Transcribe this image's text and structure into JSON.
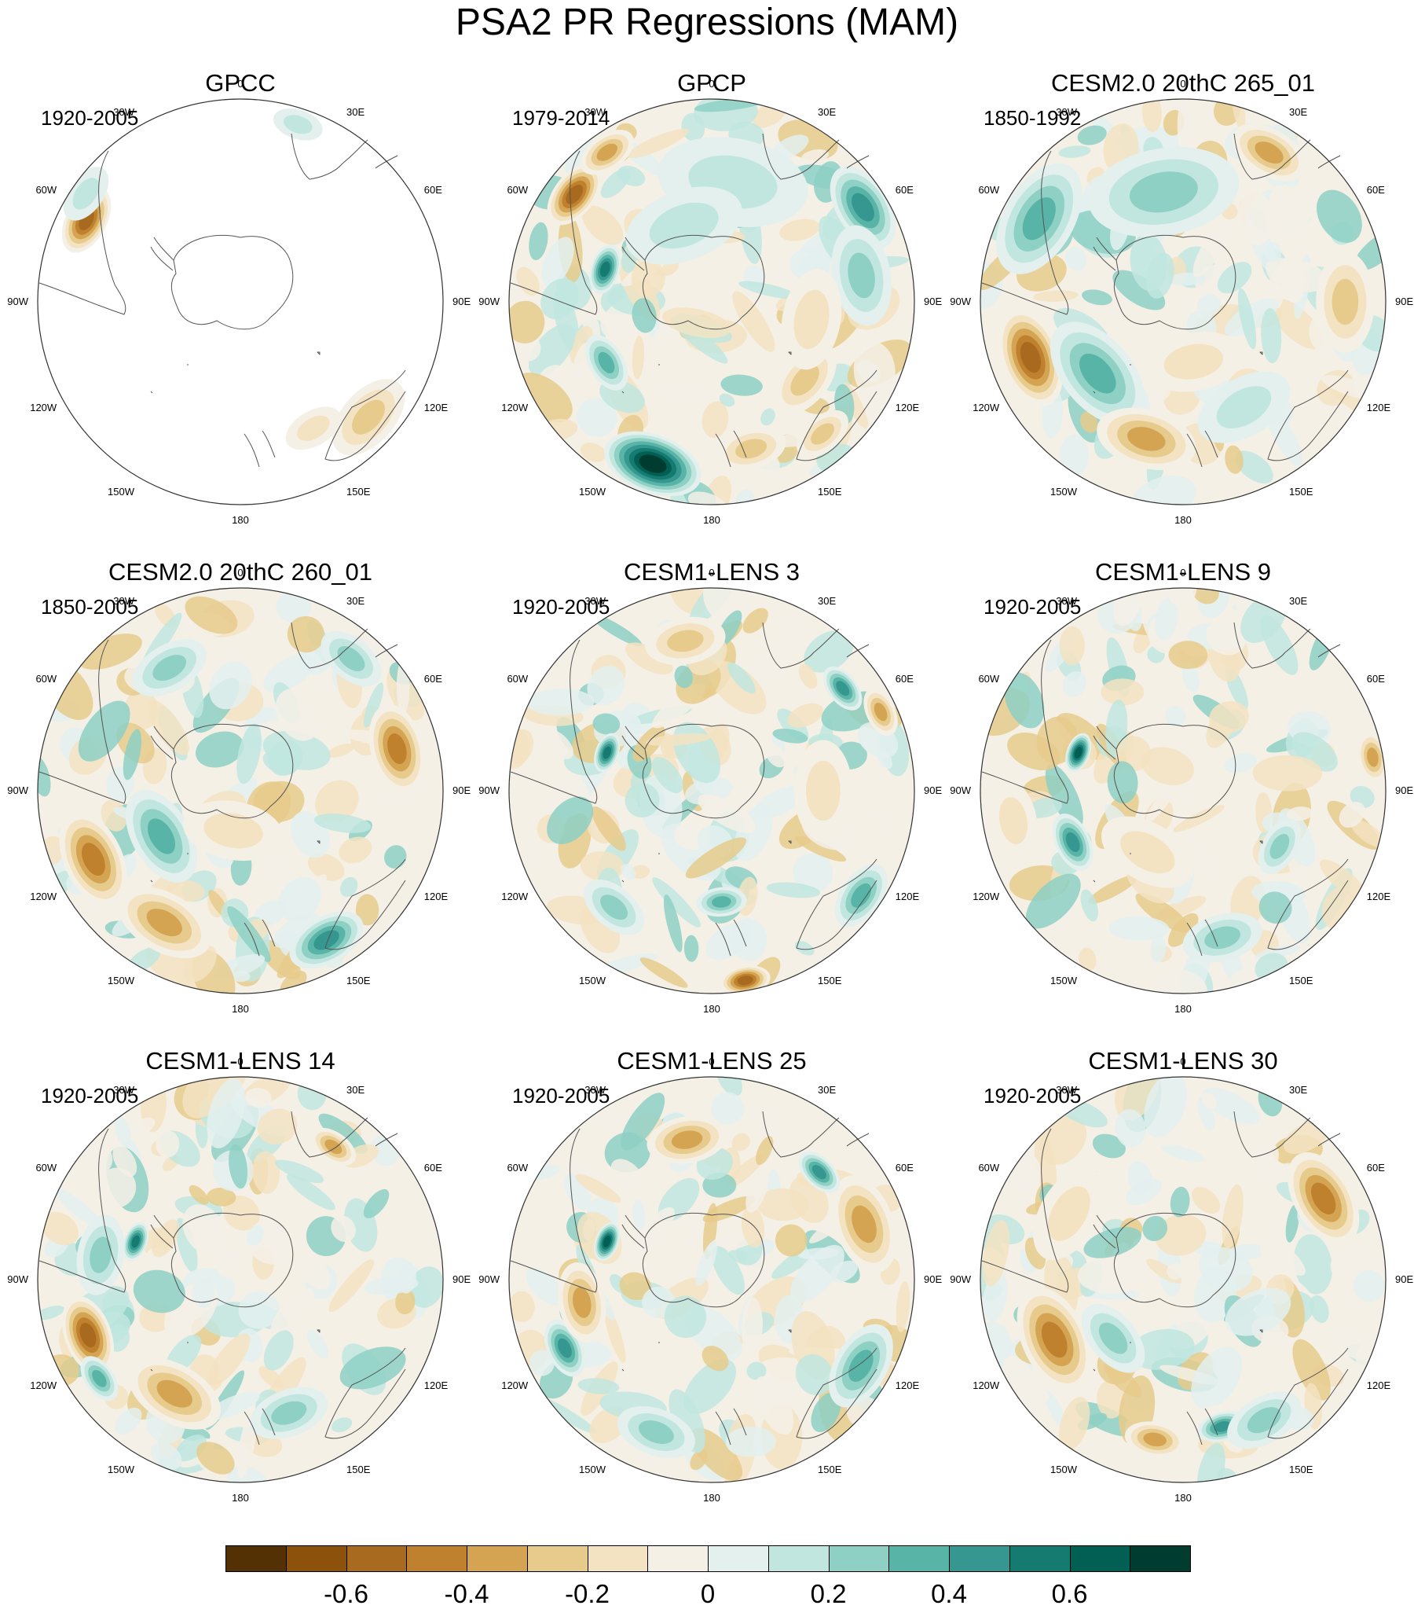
{
  "title": "PSA2 PR Regressions (MAM)",
  "longitude_labels": [
    {
      "lon": 0,
      "text": "0"
    },
    {
      "lon": 30,
      "text": "30E"
    },
    {
      "lon": 60,
      "text": "60E"
    },
    {
      "lon": 90,
      "text": "90E"
    },
    {
      "lon": 120,
      "text": "120E"
    },
    {
      "lon": 150,
      "text": "150E"
    },
    {
      "lon": 180,
      "text": "180"
    },
    {
      "lon": -150,
      "text": "150W"
    },
    {
      "lon": -120,
      "text": "120W"
    },
    {
      "lon": -90,
      "text": "90W"
    },
    {
      "lon": -60,
      "text": "60W"
    },
    {
      "lon": -30,
      "text": "30W"
    }
  ],
  "panels": [
    {
      "title": "GPCC",
      "years": "1920-2005",
      "ocean_data": false,
      "features": [
        {
          "lon": -62,
          "r": 0.86,
          "v": -0.55,
          "s": 0.07
        },
        {
          "lon": -55,
          "r": 0.93,
          "v": 0.15,
          "s": 0.06
        },
        {
          "lon": 18,
          "r": 0.92,
          "v": 0.18,
          "s": 0.05
        },
        {
          "lon": 132,
          "r": 0.85,
          "v": -0.3,
          "s": 0.09
        },
        {
          "lon": 150,
          "r": 0.72,
          "v": -0.2,
          "s": 0.06
        }
      ]
    },
    {
      "title": "GPCP",
      "years": "1979-2014",
      "ocean_data": true,
      "features": [
        {
          "lon": -52,
          "r": 0.86,
          "v": -0.6,
          "s": 0.07
        },
        {
          "lon": -35,
          "r": 0.9,
          "v": -0.4,
          "s": 0.06
        },
        {
          "lon": -73,
          "r": 0.55,
          "v": 0.6,
          "s": 0.05
        },
        {
          "lon": 58,
          "r": 0.88,
          "v": 0.5,
          "s": 0.09
        },
        {
          "lon": 80,
          "r": 0.75,
          "v": 0.25,
          "s": 0.1
        },
        {
          "lon": -160,
          "r": 0.85,
          "v": 0.75,
          "s": 0.1
        },
        {
          "lon": -120,
          "r": 0.6,
          "v": 0.4,
          "s": 0.06
        },
        {
          "lon": 165,
          "r": 0.75,
          "v": -0.3,
          "s": 0.07
        },
        {
          "lon": 130,
          "r": 0.6,
          "v": -0.25,
          "s": 0.08
        },
        {
          "lon": 10,
          "r": 0.6,
          "v": 0.2,
          "s": 0.15
        },
        {
          "lon": 100,
          "r": 0.5,
          "v": -0.15,
          "s": 0.1
        },
        {
          "lon": -20,
          "r": 0.4,
          "v": 0.15,
          "s": 0.12
        },
        {
          "lon": 140,
          "r": 0.85,
          "v": -0.25,
          "s": 0.06
        }
      ]
    },
    {
      "title": "CESM2.0 20thC 265_01",
      "years": "1850-1992",
      "ocean_data": true,
      "features": [
        {
          "lon": 30,
          "r": 0.85,
          "v": -0.35,
          "s": 0.08
        },
        {
          "lon": -60,
          "r": 0.82,
          "v": 0.35,
          "s": 0.12
        },
        {
          "lon": -110,
          "r": 0.8,
          "v": -0.55,
          "s": 0.1
        },
        {
          "lon": -130,
          "r": 0.55,
          "v": 0.4,
          "s": 0.12
        },
        {
          "lon": -165,
          "r": 0.7,
          "v": -0.4,
          "s": 0.1
        },
        {
          "lon": 90,
          "r": 0.8,
          "v": -0.3,
          "s": 0.1
        },
        {
          "lon": 150,
          "r": 0.6,
          "v": 0.2,
          "s": 0.1
        },
        {
          "lon": 170,
          "r": 0.3,
          "v": -0.2,
          "s": 0.1
        },
        {
          "lon": -10,
          "r": 0.55,
          "v": 0.25,
          "s": 0.15
        }
      ]
    },
    {
      "title": "CESM2.0 20thC 260_01",
      "years": "1850-2005",
      "ocean_data": true,
      "features": [
        {
          "lon": -115,
          "r": 0.8,
          "v": -0.45,
          "s": 0.1
        },
        {
          "lon": -150,
          "r": 0.75,
          "v": -0.4,
          "s": 0.1
        },
        {
          "lon": -120,
          "r": 0.45,
          "v": 0.4,
          "s": 0.1
        },
        {
          "lon": 75,
          "r": 0.8,
          "v": -0.45,
          "s": 0.09
        },
        {
          "lon": 150,
          "r": 0.85,
          "v": 0.45,
          "s": 0.08
        },
        {
          "lon": -30,
          "r": 0.7,
          "v": 0.3,
          "s": 0.08
        },
        {
          "lon": 40,
          "r": 0.85,
          "v": 0.3,
          "s": 0.07
        },
        {
          "lon": -170,
          "r": 0.2,
          "v": -0.2,
          "s": 0.1
        }
      ]
    },
    {
      "title": "CESM1-LENS 3",
      "years": "1920-2005",
      "ocean_data": true,
      "features": [
        {
          "lon": -70,
          "r": 0.55,
          "v": 0.6,
          "s": 0.04
        },
        {
          "lon": 52,
          "r": 0.82,
          "v": 0.5,
          "s": 0.05
        },
        {
          "lon": 65,
          "r": 0.92,
          "v": -0.35,
          "s": 0.05
        },
        {
          "lon": 170,
          "r": 0.95,
          "v": -0.55,
          "s": 0.05
        },
        {
          "lon": 125,
          "r": 0.9,
          "v": 0.4,
          "s": 0.07
        },
        {
          "lon": -10,
          "r": 0.75,
          "v": -0.25,
          "s": 0.08
        },
        {
          "lon": -140,
          "r": 0.75,
          "v": 0.3,
          "s": 0.07
        },
        {
          "lon": 175,
          "r": 0.55,
          "v": 0.35,
          "s": 0.05
        },
        {
          "lon": 90,
          "r": 0.55,
          "v": -0.15,
          "s": 0.1
        }
      ]
    },
    {
      "title": "CESM1-LENS 9",
      "years": "1920-2005",
      "ocean_data": true,
      "features": [
        {
          "lon": -70,
          "r": 0.55,
          "v": 0.65,
          "s": 0.04
        },
        {
          "lon": -115,
          "r": 0.6,
          "v": 0.45,
          "s": 0.06
        },
        {
          "lon": 80,
          "r": 0.95,
          "v": -0.4,
          "s": 0.05
        },
        {
          "lon": 165,
          "r": 0.75,
          "v": 0.3,
          "s": 0.08
        },
        {
          "lon": -100,
          "r": 0.85,
          "v": -0.2,
          "s": 0.08
        },
        {
          "lon": 120,
          "r": 0.55,
          "v": 0.3,
          "s": 0.06
        },
        {
          "lon": -150,
          "r": 0.35,
          "v": -0.2,
          "s": 0.1
        }
      ]
    },
    {
      "title": "CESM1-LENS 14",
      "years": "1920-2005",
      "ocean_data": true,
      "features": [
        {
          "lon": -70,
          "r": 0.55,
          "v": 0.6,
          "s": 0.04
        },
        {
          "lon": -110,
          "r": 0.8,
          "v": -0.55,
          "s": 0.08
        },
        {
          "lon": -150,
          "r": 0.65,
          "v": -0.4,
          "s": 0.1
        },
        {
          "lon": -125,
          "r": 0.85,
          "v": 0.35,
          "s": 0.05
        },
        {
          "lon": 35,
          "r": 0.8,
          "v": -0.35,
          "s": 0.05
        },
        {
          "lon": -80,
          "r": 0.7,
          "v": 0.3,
          "s": 0.08
        },
        {
          "lon": 160,
          "r": 0.7,
          "v": 0.25,
          "s": 0.08
        }
      ]
    },
    {
      "title": "CESM1-LENS 25",
      "years": "1920-2005",
      "ocean_data": true,
      "features": [
        {
          "lon": -70,
          "r": 0.55,
          "v": 0.65,
          "s": 0.04
        },
        {
          "lon": -10,
          "r": 0.7,
          "v": -0.4,
          "s": 0.08
        },
        {
          "lon": 70,
          "r": 0.8,
          "v": -0.4,
          "s": 0.1
        },
        {
          "lon": 45,
          "r": 0.75,
          "v": 0.45,
          "s": 0.05
        },
        {
          "lon": -115,
          "r": 0.8,
          "v": 0.5,
          "s": 0.06
        },
        {
          "lon": -100,
          "r": 0.65,
          "v": -0.35,
          "s": 0.08
        },
        {
          "lon": 120,
          "r": 0.85,
          "v": 0.35,
          "s": 0.09
        },
        {
          "lon": -160,
          "r": 0.8,
          "v": 0.3,
          "s": 0.08
        }
      ]
    },
    {
      "title": "CESM1-LENS 30",
      "years": "1920-2005",
      "ocean_data": true,
      "features": [
        {
          "lon": 60,
          "r": 0.8,
          "v": -0.45,
          "s": 0.1
        },
        {
          "lon": -115,
          "r": 0.7,
          "v": -0.5,
          "s": 0.11
        },
        {
          "lon": 165,
          "r": 0.75,
          "v": 0.5,
          "s": 0.05
        },
        {
          "lon": -130,
          "r": 0.45,
          "v": 0.3,
          "s": 0.08
        },
        {
          "lon": -170,
          "r": 0.8,
          "v": -0.35,
          "s": 0.06
        },
        {
          "lon": 150,
          "r": 0.8,
          "v": 0.25,
          "s": 0.08
        },
        {
          "lon": -60,
          "r": 0.65,
          "v": -0.15,
          "s": 0.1
        }
      ]
    }
  ],
  "colorbar": {
    "levels": [
      -0.7,
      -0.6,
      -0.5,
      -0.4,
      -0.3,
      -0.2,
      -0.1,
      0,
      0.1,
      0.2,
      0.3,
      0.4,
      0.5,
      0.6,
      0.7
    ],
    "colors": [
      "#543005",
      "#8c510a",
      "#a86a1f",
      "#bf812d",
      "#d4a452",
      "#e6cb8c",
      "#f3e3c2",
      "#f5f0e6",
      "#e3f0ee",
      "#c0e6df",
      "#8ed0c4",
      "#58b4a6",
      "#35978f",
      "#157a70",
      "#015f54",
      "#003c30"
    ],
    "tick_labels": [
      {
        "value": -0.6,
        "text": "-0.6"
      },
      {
        "value": -0.4,
        "text": "-0.4"
      },
      {
        "value": -0.2,
        "text": "-0.2"
      },
      {
        "value": 0,
        "text": "0"
      },
      {
        "value": 0.2,
        "text": "0.2"
      },
      {
        "value": 0.4,
        "text": "0.4"
      },
      {
        "value": 0.6,
        "text": "0.6"
      }
    ]
  }
}
